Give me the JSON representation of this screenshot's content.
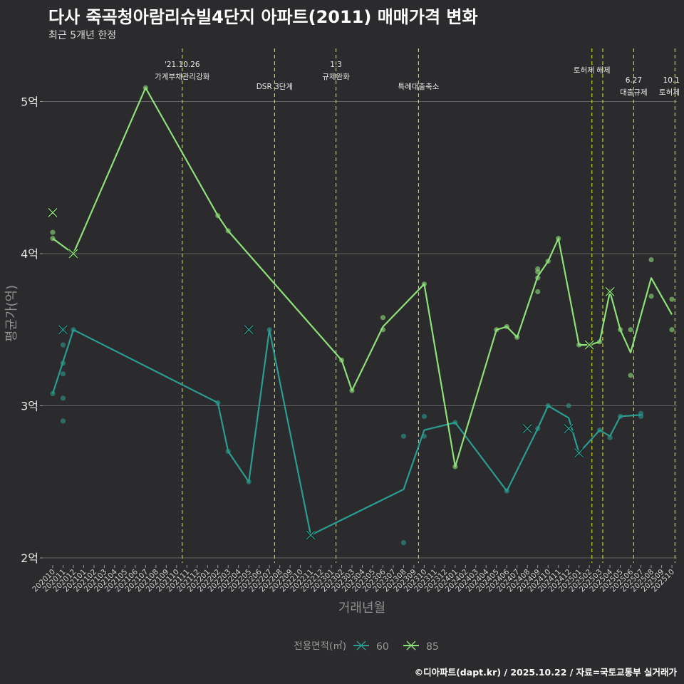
{
  "header": {
    "title": "다사 죽곡청아람리슈빌4단지 아파트(2011) 매매가격 변화",
    "subtitle": "최근 5개년 한정"
  },
  "caption": "©디아파트(dapt.kr) / 2025.10.22 / 자료=국토교통부 실거래가",
  "colors": {
    "background": "#2b2a2c",
    "grid": "#626262",
    "event_line": "#c8d321",
    "series_60": "#2a9d90",
    "series_85": "#8ee07a"
  },
  "chart_data": {
    "type": "line",
    "title": "다사 죽곡청아람리슈빌4단지 아파트(2011) 매매가격 변화",
    "subtitle": "최근 5개년 한정",
    "xlabel": "거래년월",
    "ylabel": "평균가(억)",
    "ylim": [
      1.95,
      5.35
    ],
    "y_ticks": [
      {
        "value": 2,
        "label": "2억"
      },
      {
        "value": 3,
        "label": "3억"
      },
      {
        "value": 4,
        "label": "4억"
      },
      {
        "value": 5,
        "label": "5억"
      }
    ],
    "x_labels": [
      "202010",
      "202011",
      "202012",
      "202101",
      "202102",
      "202103",
      "202104",
      "202105",
      "202106",
      "202107",
      "202108",
      "202109",
      "202110",
      "202111",
      "202112",
      "202201",
      "202202",
      "202203",
      "202204",
      "202205",
      "202206",
      "202207",
      "202208",
      "202209",
      "202210",
      "202211",
      "202212",
      "202301",
      "202302",
      "202303",
      "202304",
      "202305",
      "202306",
      "202307",
      "202308",
      "202309",
      "202310",
      "202311",
      "202312",
      "202401",
      "202402",
      "202403",
      "202404",
      "202405",
      "202406",
      "202407",
      "202408",
      "202409",
      "202410",
      "202411",
      "202412",
      "202501",
      "202502",
      "202503",
      "202504",
      "202505",
      "202506",
      "202507",
      "202508",
      "202509",
      "202510"
    ],
    "legend": {
      "title": "전용면적(㎡)",
      "position": "bottom"
    },
    "events": [
      {
        "x": 12.55,
        "lines": [
          "'21.10.26",
          "가계부채관리강화"
        ],
        "row": "top"
      },
      {
        "x": 21.5,
        "lines": [
          "DSR 3단계"
        ],
        "row": "low"
      },
      {
        "x": 27.45,
        "lines": [
          "1.3",
          "규제완화"
        ],
        "row": "top"
      },
      {
        "x": 35.45,
        "lines": [
          "특례대출축소"
        ],
        "row": "low"
      },
      {
        "x": 52.25,
        "lines": [
          "토허제 해제"
        ],
        "row": "top2"
      },
      {
        "x": 53.3,
        "lines": [],
        "row": "none"
      },
      {
        "x": 56.3,
        "lines": [
          "6.27",
          "대출규제"
        ],
        "row": "mid"
      },
      {
        "x": 60.3,
        "lines": [
          "10.1",
          "토허제"
        ],
        "row": "mid"
      }
    ],
    "series": [
      {
        "name": "60",
        "line": [
          [
            0,
            3.08
          ],
          [
            2,
            3.5
          ],
          [
            16,
            3.02
          ],
          [
            17,
            2.7
          ],
          [
            19,
            2.5
          ],
          [
            21,
            3.5
          ],
          [
            25,
            2.15
          ],
          [
            34,
            2.45
          ],
          [
            36,
            2.84
          ],
          [
            39,
            2.89
          ],
          [
            44,
            2.44
          ],
          [
            47,
            2.85
          ],
          [
            48,
            3.0
          ],
          [
            50,
            2.92
          ],
          [
            51,
            2.69
          ],
          [
            53,
            2.84
          ],
          [
            54,
            2.8
          ],
          [
            55,
            2.93
          ],
          [
            57,
            2.94
          ]
        ],
        "points": [
          [
            0,
            3.08
          ],
          [
            1,
            3.5
          ],
          [
            1,
            3.4
          ],
          [
            1,
            3.28
          ],
          [
            1,
            3.21
          ],
          [
            1,
            3.05
          ],
          [
            1,
            2.9
          ],
          [
            2,
            3.5
          ],
          [
            16,
            3.02
          ],
          [
            17,
            2.7
          ],
          [
            19,
            2.5
          ],
          [
            21,
            3.5
          ],
          [
            34,
            2.8
          ],
          [
            34,
            2.1
          ],
          [
            36,
            2.93
          ],
          [
            36,
            2.8
          ],
          [
            39,
            2.89
          ],
          [
            44,
            2.44
          ],
          [
            47,
            2.85
          ],
          [
            48,
            3.0
          ],
          [
            50,
            3.0
          ],
          [
            51,
            2.69
          ],
          [
            53,
            2.84
          ],
          [
            54,
            2.79
          ],
          [
            55,
            2.93
          ],
          [
            57,
            2.95
          ],
          [
            57,
            2.93
          ]
        ],
        "cross_marks": [
          [
            1,
            3.5
          ],
          [
            19,
            3.5
          ],
          [
            25,
            2.15
          ],
          [
            46,
            2.85
          ],
          [
            50,
            2.85
          ],
          [
            51,
            2.69
          ]
        ]
      },
      {
        "name": "85",
        "line": [
          [
            0,
            4.1
          ],
          [
            2,
            4.0
          ],
          [
            9,
            5.09
          ],
          [
            16,
            4.25
          ],
          [
            17,
            4.15
          ],
          [
            28,
            3.3
          ],
          [
            29,
            3.1
          ],
          [
            32,
            3.52
          ],
          [
            36,
            3.8
          ],
          [
            39,
            2.6
          ],
          [
            43,
            3.5
          ],
          [
            44,
            3.52
          ],
          [
            45,
            3.45
          ],
          [
            47,
            3.85
          ],
          [
            48,
            3.95
          ],
          [
            49,
            4.1
          ],
          [
            51,
            3.4
          ],
          [
            52,
            3.4
          ],
          [
            53,
            3.42
          ],
          [
            54,
            3.75
          ],
          [
            55,
            3.5
          ],
          [
            56,
            3.35
          ],
          [
            58,
            3.84
          ],
          [
            60,
            3.6
          ]
        ],
        "points": [
          [
            0,
            4.14
          ],
          [
            0,
            4.1
          ],
          [
            2,
            4.0
          ],
          [
            9,
            5.09
          ],
          [
            16,
            4.25
          ],
          [
            17,
            4.15
          ],
          [
            28,
            3.3
          ],
          [
            29,
            3.1
          ],
          [
            32,
            3.58
          ],
          [
            32,
            3.5
          ],
          [
            36,
            3.8
          ],
          [
            39,
            2.6
          ],
          [
            43,
            3.5
          ],
          [
            44,
            3.52
          ],
          [
            45,
            3.45
          ],
          [
            47,
            3.9
          ],
          [
            47,
            3.88
          ],
          [
            47,
            3.84
          ],
          [
            47,
            3.75
          ],
          [
            48,
            3.95
          ],
          [
            49,
            4.1
          ],
          [
            51,
            3.4
          ],
          [
            52,
            3.4
          ],
          [
            53,
            3.42
          ],
          [
            54,
            3.75
          ],
          [
            55,
            3.5
          ],
          [
            56,
            3.5
          ],
          [
            56,
            3.2
          ],
          [
            58,
            3.96
          ],
          [
            58,
            3.72
          ],
          [
            60,
            3.7
          ],
          [
            60,
            3.5
          ]
        ],
        "cross_marks": [
          [
            0,
            4.27
          ],
          [
            2,
            4.0
          ],
          [
            52,
            3.4
          ],
          [
            54,
            3.75
          ]
        ]
      }
    ]
  }
}
